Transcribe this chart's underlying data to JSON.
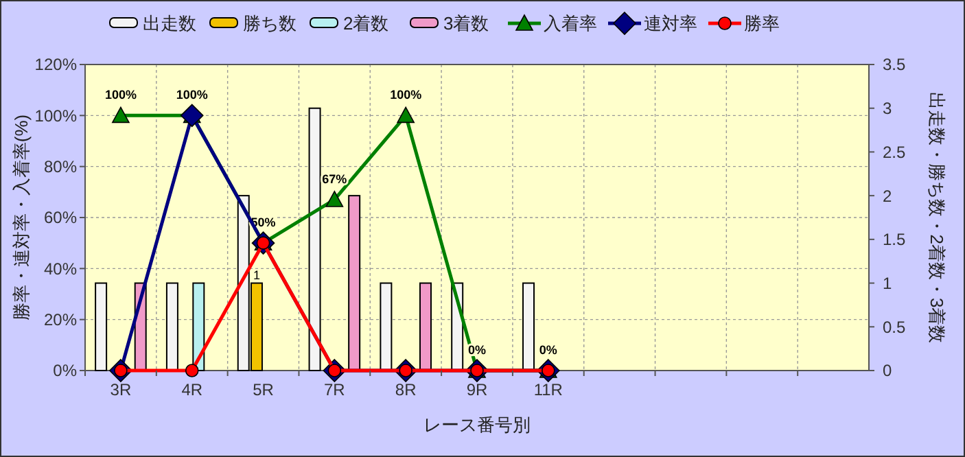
{
  "chart_data": {
    "type": "bar",
    "xlabel": "レース番号別",
    "ylabel": "勝率・連対率・入着率(%)",
    "y2label": "出走数・勝ち数・2着数・3着数",
    "categories": [
      "3R",
      "4R",
      "5R",
      "7R",
      "8R",
      "9R",
      "11R",
      null,
      null,
      null,
      null
    ],
    "series": [
      {
        "name": "出走数",
        "axis": "y2",
        "color": "#f4f4f4",
        "values": [
          1,
          1,
          2,
          3,
          1,
          1,
          1,
          null,
          null,
          null,
          null
        ]
      },
      {
        "name": "勝ち数",
        "axis": "y2",
        "color": "#f2c200",
        "values": [
          0,
          0,
          1,
          0,
          0,
          0,
          0,
          null,
          null,
          null,
          null
        ],
        "value_labels": [
          null,
          null,
          "1",
          null,
          null,
          null,
          null,
          null,
          null,
          null,
          null
        ]
      },
      {
        "name": "2着数",
        "axis": "y2",
        "color": "#b8f0f0",
        "values": [
          0,
          1,
          0,
          0,
          0,
          0,
          0,
          null,
          null,
          null,
          null
        ]
      },
      {
        "name": "3着数",
        "axis": "y2",
        "color": "#f09ac8",
        "values": [
          1,
          0,
          0,
          2,
          1,
          0,
          0,
          null,
          null,
          null,
          null
        ]
      },
      {
        "name": "入着率",
        "type": "line",
        "color": "#008000",
        "marker": "triangle",
        "values": [
          100,
          100,
          50,
          67,
          100,
          0,
          0,
          null,
          null,
          null,
          null
        ],
        "value_labels": [
          "100%",
          "100%",
          "50%",
          "67%",
          "100%",
          "0%",
          "0%",
          null,
          null,
          null,
          null
        ]
      },
      {
        "name": "連対率",
        "type": "line",
        "color": "#000080",
        "marker": "diamond",
        "values": [
          0,
          100,
          50,
          0,
          0,
          0,
          0,
          null,
          null,
          null,
          null
        ]
      },
      {
        "name": "勝率",
        "type": "line",
        "color": "#ff0000",
        "marker": "circle",
        "values": [
          0,
          0,
          50,
          0,
          0,
          0,
          0,
          null,
          null,
          null,
          null
        ]
      }
    ],
    "ylim": [
      0,
      120
    ],
    "yticks": [
      {
        "value": 0,
        "label": "0%"
      },
      {
        "value": 20,
        "label": "20%"
      },
      {
        "value": 40,
        "label": "40%"
      },
      {
        "value": 60,
        "label": "60%"
      },
      {
        "value": 80,
        "label": "80%"
      },
      {
        "value": 100,
        "label": "100%"
      },
      {
        "value": 120,
        "label": "120%"
      }
    ],
    "y2lim": [
      0,
      3.5
    ],
    "y2ticks": [
      0,
      0.5,
      1,
      1.5,
      2,
      2.5,
      3,
      3.5
    ],
    "grid": true,
    "legend": "top",
    "line_style": "solid"
  }
}
